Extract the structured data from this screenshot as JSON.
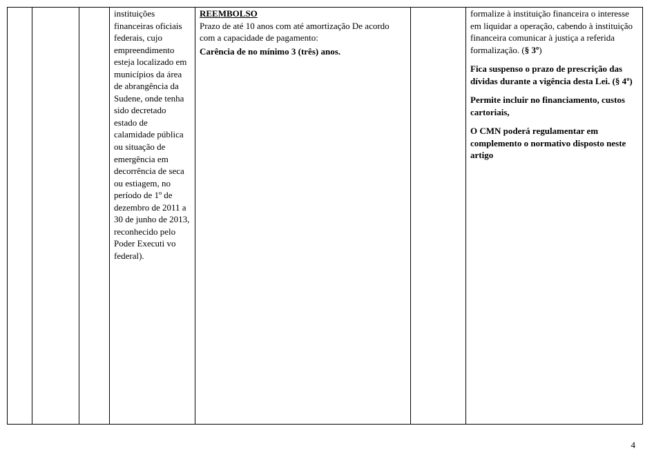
{
  "col3": {
    "p1": "instituições financeiras oficiais federais, cujo empreendimento esteja localizado em municípios da área de abrangência da Sudene, onde tenha sido decretado estado de calamidade pública ou situação de emergência em decorrência de seca ou estiagem, no período de 1º de dezembro de 2011 a 30 de junho de 2013, reconhecido pelo Poder Executi vo federal)."
  },
  "col4": {
    "heading": "REEMBOLSO",
    "p1": "Prazo de até 10 anos com até amortização De acordo com a capacidade de pagamento:",
    "p2": "Carência de no mínimo 3 (três) anos."
  },
  "col6": {
    "p1_a": "formalize à instituição financeira o interesse em liquidar a operação, cabendo à instituição financeira comunicar à justiça a referida formalização. (",
    "p1_b": "§ 3º",
    "p1_c": ")",
    "p2_a": "Fica suspenso o prazo de prescrição das dívidas durante a vigência desta Lei. (",
    "p2_b": "§ 4º",
    "p2_c": ")",
    "p3": "Permite incluir no financiamento, custos cartoriais,",
    "p4": "O CMN poderá regulamentar em complemento o normativo disposto neste artigo"
  },
  "page_number": "4"
}
